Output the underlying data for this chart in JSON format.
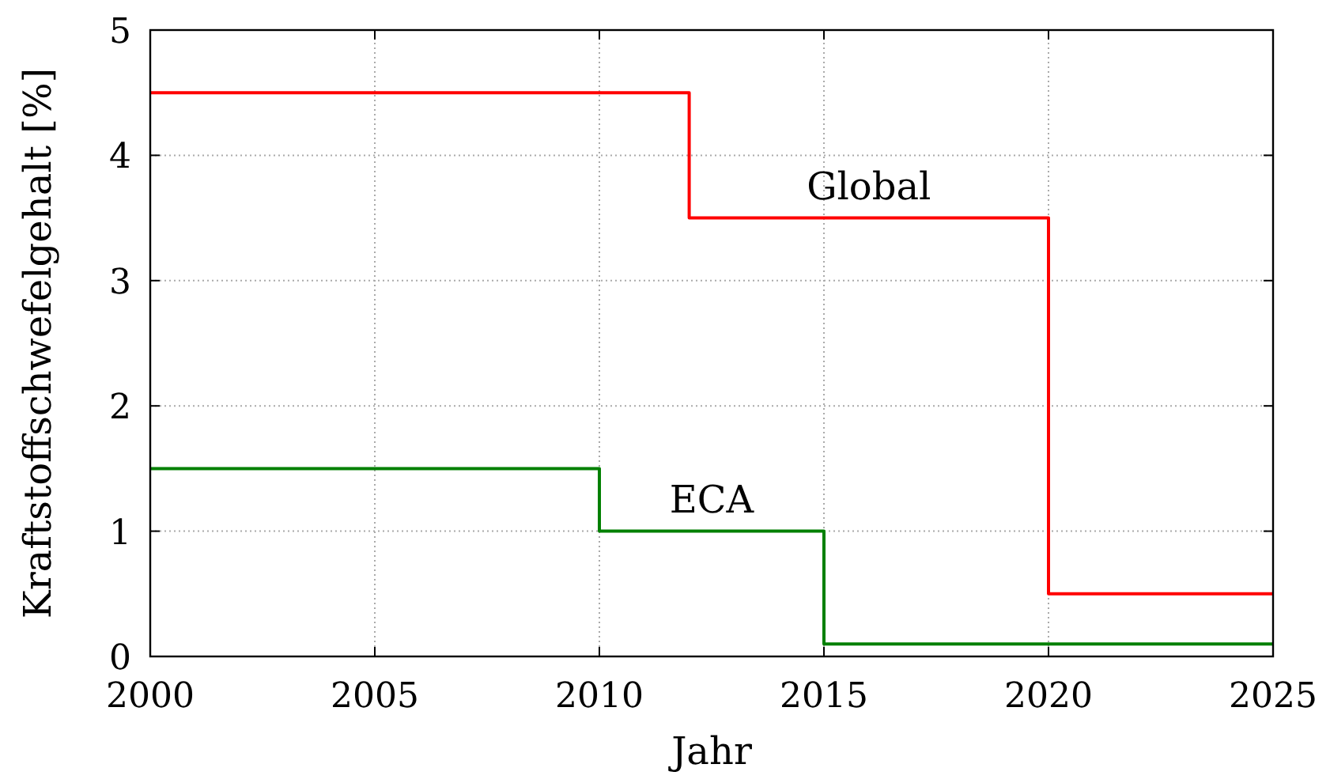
{
  "chart_data": {
    "type": "step",
    "xlabel": "Jahr",
    "ylabel": "Kraftstoffschwefelgehalt [%]",
    "series": [
      {
        "name": "Global",
        "color": "#ff0000",
        "x": [
          2000,
          2012,
          2020,
          2025
        ],
        "values": [
          4.5,
          3.5,
          0.5,
          0.5
        ]
      },
      {
        "name": "ECA",
        "color": "#008000",
        "x": [
          2000,
          2010,
          2015,
          2025
        ],
        "values": [
          1.5,
          1.0,
          0.1,
          0.1
        ]
      }
    ],
    "xlim": [
      2000,
      2025
    ],
    "xticks": [
      2000,
      2005,
      2010,
      2015,
      2020,
      2025
    ],
    "ylim": [
      0,
      5
    ],
    "yticks": [
      0,
      1,
      2,
      3,
      4,
      5
    ],
    "grid": true
  }
}
